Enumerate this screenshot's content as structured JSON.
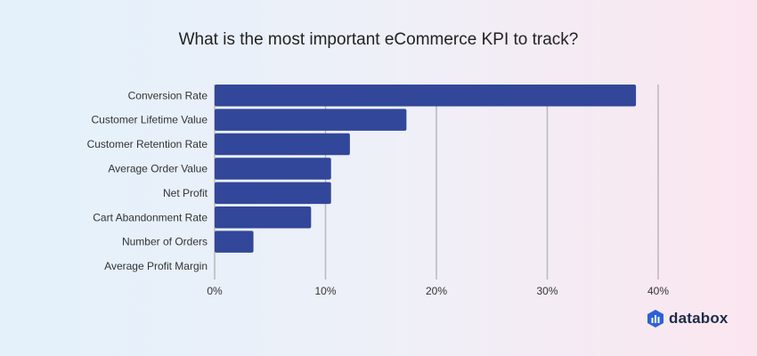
{
  "chart_data": {
    "type": "bar",
    "orientation": "horizontal",
    "title": "What is the most important eCommerce KPI to track?",
    "categories": [
      "Conversion Rate",
      "Customer Lifetime Value",
      "Customer Retention Rate",
      "Average Order Value",
      "Net Profit",
      "Cart Abandonment Rate",
      "Number of Orders",
      "Average Profit Margin"
    ],
    "values": [
      38,
      17.3,
      12.2,
      10.5,
      10.5,
      8.7,
      3.5,
      0
    ],
    "xlim": [
      0,
      40
    ],
    "xticks": [
      "0%",
      "10%",
      "20%",
      "30%",
      "40%"
    ],
    "grid": true,
    "bar_color": "#32479a",
    "grid_color": "#b9b9b9"
  },
  "brand": {
    "name": "databox",
    "logo_icon": "databox-logo-icon",
    "color": "#2d62d6"
  }
}
